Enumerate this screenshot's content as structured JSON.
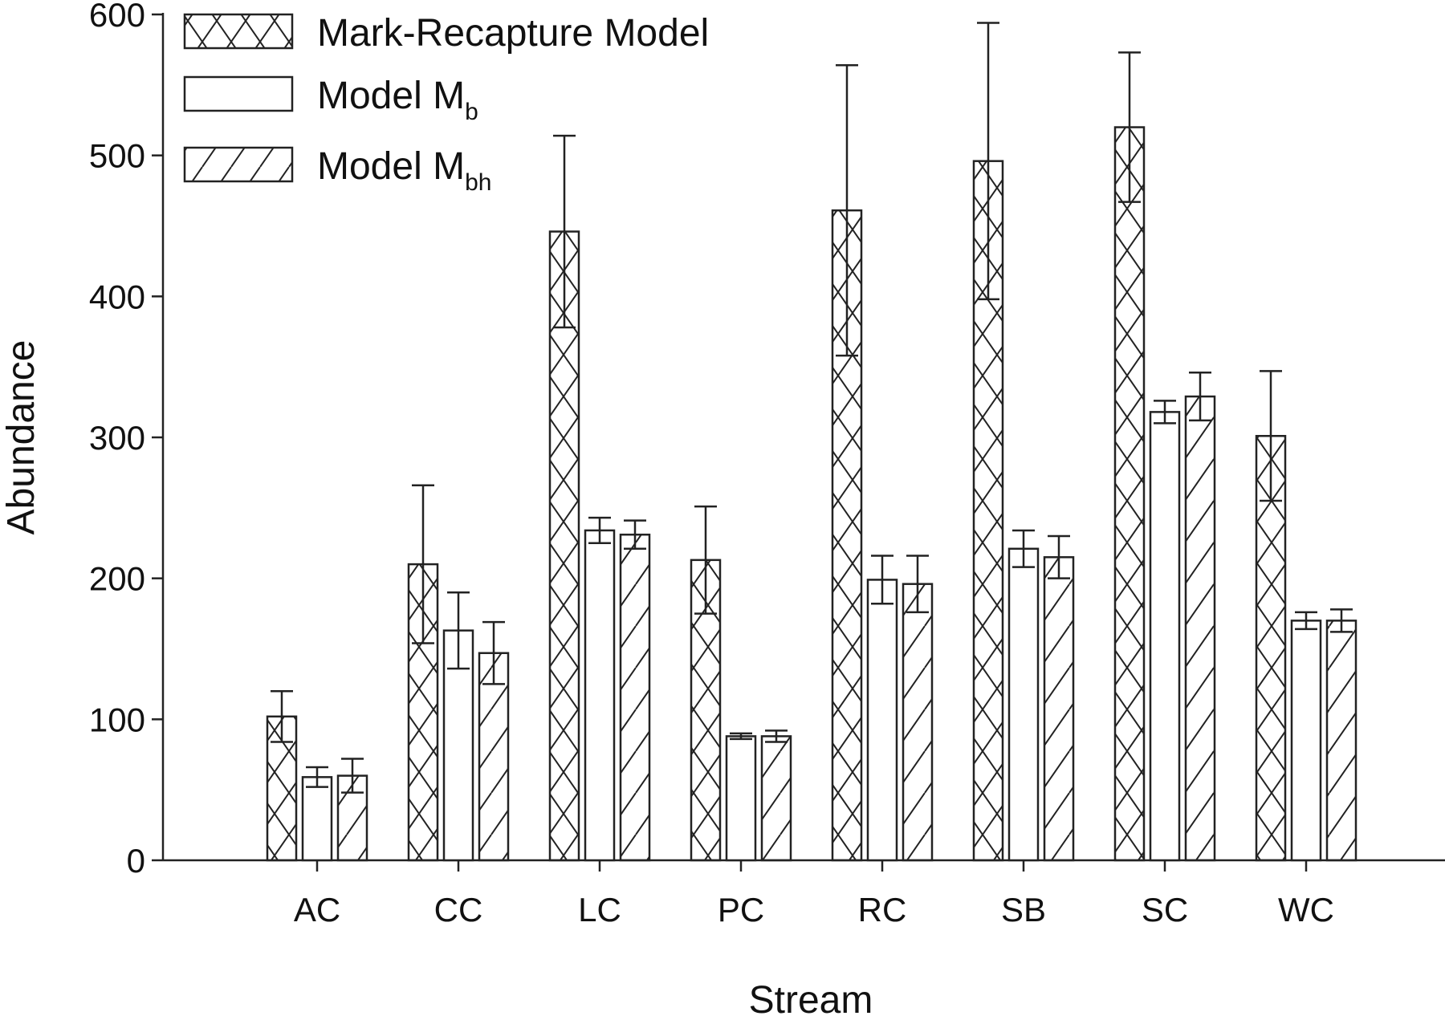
{
  "chart_data": {
    "type": "bar",
    "xlabel": "Stream",
    "ylabel": "Abundance",
    "ylim": [
      0,
      600
    ],
    "yticks": [
      0,
      100,
      200,
      300,
      400,
      500,
      600
    ],
    "grid": false,
    "legend_position": "top-left",
    "categories": [
      "AC",
      "CC",
      "LC",
      "PC",
      "RC",
      "SB",
      "SC",
      "WC"
    ],
    "series": [
      {
        "name": "Mark-Recapture Model",
        "name_base": "Mark-Recapture Model",
        "name_sub": "",
        "pattern": "crosshatch",
        "values": [
          102,
          210,
          446,
          213,
          461,
          496,
          520,
          301
        ],
        "errors": [
          18,
          56,
          68,
          38,
          103,
          98,
          53,
          46
        ]
      },
      {
        "name": "Model Mb",
        "name_base": "Model M",
        "name_sub": "b",
        "pattern": "none",
        "values": [
          59,
          163,
          234,
          88,
          199,
          221,
          318,
          170
        ],
        "errors": [
          7,
          27,
          9,
          2,
          17,
          13,
          8,
          6
        ]
      },
      {
        "name": "Model Mbh",
        "name_base": "Model M",
        "name_sub": "bh",
        "pattern": "diagonal",
        "values": [
          60,
          147,
          231,
          88,
          196,
          215,
          329,
          170
        ],
        "errors": [
          12,
          22,
          10,
          4,
          20,
          15,
          17,
          8
        ]
      }
    ],
    "colors": {
      "fill": "#ffffff",
      "stroke": "#222222"
    }
  }
}
